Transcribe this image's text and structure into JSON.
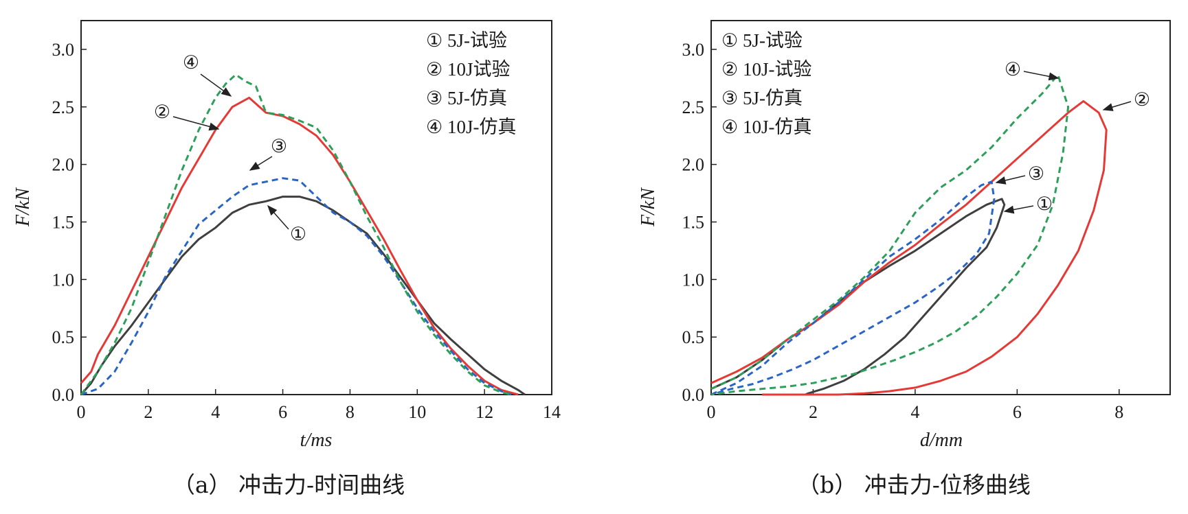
{
  "chart_data": [
    {
      "type": "line",
      "caption": "（a） 冲击力-时间曲线",
      "xlabel": "t/ms",
      "ylabel": "F/kN",
      "xlim": [
        0,
        14
      ],
      "ylim": [
        0,
        3.25
      ],
      "xticks": [
        "0",
        "2",
        "4",
        "6",
        "8",
        "10",
        "12",
        "14"
      ],
      "yticks": [
        "0.0",
        "0.5",
        "1.0",
        "1.5",
        "2.0",
        "2.5",
        "3.0"
      ],
      "legend": [
        "① 5J-试验",
        "② 10J试验",
        "③ 5J-仿真",
        "④ 10J-仿真"
      ],
      "legend_position": "top-right",
      "callout_labels": [
        "①",
        "②",
        "③",
        "④"
      ],
      "series": [
        {
          "name": "① 5J-试验",
          "color": "#3f3f3f",
          "dash": "solid",
          "x": [
            0,
            0.3,
            0.6,
            1,
            1.5,
            2,
            2.5,
            3,
            3.5,
            4,
            4.5,
            5,
            5.5,
            6,
            6.5,
            7,
            7.5,
            8,
            8.5,
            9,
            9.5,
            10,
            10.5,
            11,
            11.5,
            12,
            12.5,
            13,
            13.2
          ],
          "y": [
            0,
            0.1,
            0.25,
            0.42,
            0.6,
            0.8,
            1.0,
            1.2,
            1.35,
            1.45,
            1.58,
            1.65,
            1.68,
            1.72,
            1.72,
            1.68,
            1.6,
            1.5,
            1.4,
            1.22,
            1.02,
            0.82,
            0.62,
            0.48,
            0.35,
            0.22,
            0.12,
            0.04,
            0
          ]
        },
        {
          "name": "② 10J试验",
          "color": "#e53935",
          "dash": "solid",
          "x": [
            0,
            0.3,
            0.5,
            1,
            1.5,
            2,
            2.5,
            3,
            3.5,
            4,
            4.5,
            5,
            5.5,
            6,
            6.5,
            7,
            7.5,
            8,
            8.5,
            9,
            9.5,
            10,
            10.5,
            11,
            11.5,
            12,
            12.5,
            13
          ],
          "y": [
            0.1,
            0.2,
            0.35,
            0.6,
            0.9,
            1.2,
            1.5,
            1.8,
            2.05,
            2.3,
            2.5,
            2.58,
            2.45,
            2.42,
            2.35,
            2.25,
            2.08,
            1.85,
            1.6,
            1.35,
            1.08,
            0.82,
            0.58,
            0.4,
            0.25,
            0.12,
            0.04,
            0
          ]
        },
        {
          "name": "③ 5J-仿真",
          "color": "#2a64c5",
          "dash": "dashed",
          "x": [
            0,
            0.5,
            1,
            1.5,
            2,
            2.5,
            3,
            3.5,
            4,
            4.5,
            5,
            5.5,
            6,
            6.5,
            7,
            7.5,
            8,
            8.5,
            9,
            9.5,
            10,
            10.5,
            11,
            11.5,
            12,
            12.5,
            12.8
          ],
          "y": [
            0,
            0.05,
            0.2,
            0.45,
            0.72,
            1.02,
            1.25,
            1.48,
            1.6,
            1.72,
            1.82,
            1.85,
            1.88,
            1.86,
            1.72,
            1.58,
            1.5,
            1.38,
            1.2,
            0.98,
            0.75,
            0.55,
            0.38,
            0.22,
            0.1,
            0.03,
            0
          ]
        },
        {
          "name": "④ 10J-仿真",
          "color": "#2e9e5b",
          "dash": "dashed",
          "x": [
            0,
            0.5,
            1,
            1.5,
            2,
            2.5,
            3,
            3.5,
            4,
            4.3,
            4.6,
            4.9,
            5.2,
            5.5,
            6,
            6.5,
            7,
            7.5,
            8,
            8.5,
            9,
            9.5,
            10,
            10.5,
            11,
            11.5,
            12,
            12.5,
            12.8
          ],
          "y": [
            0,
            0.2,
            0.45,
            0.75,
            1.15,
            1.55,
            1.95,
            2.3,
            2.58,
            2.7,
            2.78,
            2.72,
            2.68,
            2.45,
            2.43,
            2.38,
            2.32,
            2.12,
            1.85,
            1.55,
            1.28,
            0.98,
            0.72,
            0.52,
            0.35,
            0.2,
            0.08,
            0.02,
            0
          ]
        }
      ]
    },
    {
      "type": "line",
      "caption": "（b） 冲击力-位移曲线",
      "xlabel": "d/mm",
      "ylabel": "F/kN",
      "xlim": [
        0,
        9
      ],
      "ylim": [
        0,
        3.25
      ],
      "xticks": [
        "0",
        "2",
        "4",
        "6",
        "8"
      ],
      "yticks": [
        "0.0",
        "0.5",
        "1.0",
        "1.5",
        "2.0",
        "2.5",
        "3.0"
      ],
      "legend": [
        "① 5J-试验",
        "② 10J-试验",
        "③ 5J-仿真",
        "④ 10J-仿真"
      ],
      "legend_position": "top-left",
      "callout_labels": [
        "①",
        "②",
        "③",
        "④"
      ],
      "series": [
        {
          "name": "① 5J-试验",
          "color": "#3f3f3f",
          "dash": "solid",
          "x": [
            0,
            0.5,
            1,
            1.5,
            2,
            2.5,
            3,
            3.5,
            4,
            4.5,
            5,
            5.4,
            5.7,
            5.75,
            5.6,
            5.4,
            5.0,
            4.6,
            4.2,
            3.8,
            3.4,
            3.0,
            2.6,
            2.2,
            1.9,
            1.85
          ],
          "y": [
            0.05,
            0.15,
            0.3,
            0.48,
            0.62,
            0.8,
            0.98,
            1.12,
            1.25,
            1.4,
            1.55,
            1.65,
            1.7,
            1.65,
            1.45,
            1.28,
            1.1,
            0.9,
            0.7,
            0.5,
            0.35,
            0.22,
            0.12,
            0.05,
            0.01,
            0
          ]
        },
        {
          "name": "② 10J-试验",
          "color": "#e53935",
          "dash": "solid",
          "x": [
            0,
            0.5,
            1,
            1.5,
            2,
            2.5,
            3,
            3.5,
            4,
            4.5,
            5,
            5.5,
            6,
            6.5,
            7,
            7.3,
            7.6,
            7.75,
            7.7,
            7.5,
            7.2,
            6.8,
            6.4,
            6.0,
            5.5,
            5.0,
            4.5,
            4.0,
            3.5,
            3.0,
            2.5,
            2.0,
            1.5,
            1.0
          ],
          "y": [
            0.1,
            0.2,
            0.32,
            0.48,
            0.62,
            0.78,
            0.98,
            1.15,
            1.3,
            1.48,
            1.65,
            1.85,
            2.05,
            2.25,
            2.45,
            2.55,
            2.45,
            2.3,
            1.95,
            1.6,
            1.25,
            0.95,
            0.7,
            0.5,
            0.33,
            0.2,
            0.12,
            0.06,
            0.03,
            0.01,
            0,
            0,
            0,
            0
          ]
        },
        {
          "name": "③ 5J-仿真",
          "color": "#2a64c5",
          "dash": "dashed",
          "x": [
            0,
            0.5,
            1,
            1.5,
            2,
            2.5,
            3,
            3.5,
            4,
            4.5,
            5,
            5.3,
            5.5,
            5.55,
            5.45,
            5.2,
            4.8,
            4.4,
            4.0,
            3.6,
            3.2,
            2.8,
            2.4,
            2.0,
            1.6,
            1.2,
            0.8,
            0.4,
            0
          ],
          "y": [
            0,
            0.1,
            0.25,
            0.45,
            0.62,
            0.8,
            1.0,
            1.2,
            1.35,
            1.52,
            1.72,
            1.82,
            1.85,
            1.7,
            1.4,
            1.22,
            1.05,
            0.92,
            0.8,
            0.7,
            0.6,
            0.5,
            0.4,
            0.3,
            0.22,
            0.15,
            0.09,
            0.05,
            0
          ]
        },
        {
          "name": "④ 10J-仿真",
          "color": "#2e9e5b",
          "dash": "dashed",
          "x": [
            0,
            0.5,
            1,
            1.5,
            2,
            2.5,
            3,
            3.5,
            4,
            4.5,
            5,
            5.5,
            6,
            6.5,
            6.8,
            7.0,
            6.9,
            6.7,
            6.4,
            6.0,
            5.6,
            5.2,
            4.8,
            4.4,
            4.0,
            3.6,
            3.2,
            2.8,
            2.4,
            2.0,
            1.5,
            1.0,
            0.5,
            0
          ],
          "y": [
            0.05,
            0.15,
            0.3,
            0.48,
            0.65,
            0.82,
            1.02,
            1.25,
            1.58,
            1.8,
            1.95,
            2.15,
            2.4,
            2.62,
            2.78,
            2.5,
            2.1,
            1.65,
            1.3,
            1.05,
            0.85,
            0.68,
            0.55,
            0.45,
            0.37,
            0.3,
            0.24,
            0.18,
            0.14,
            0.1,
            0.07,
            0.05,
            0.03,
            0
          ]
        }
      ]
    }
  ]
}
